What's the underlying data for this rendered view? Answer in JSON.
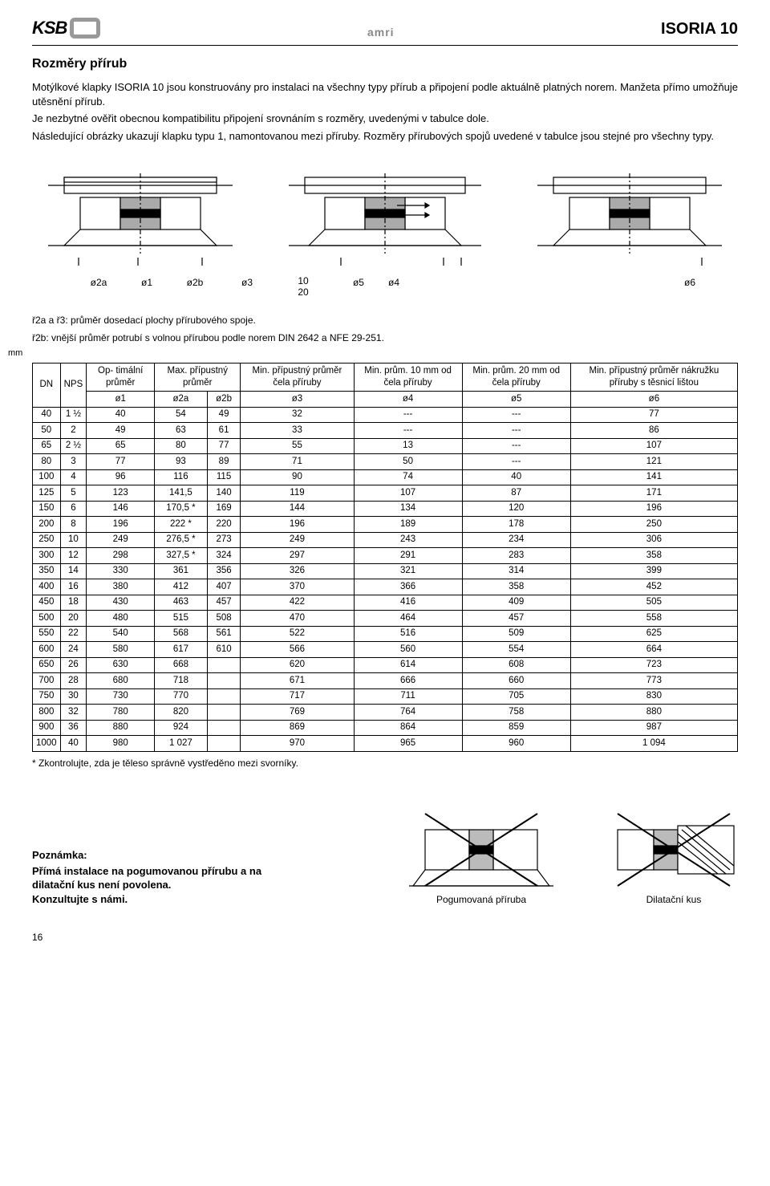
{
  "header": {
    "logo_text": "KSB",
    "center_brand": "amri",
    "product": "ISORIA 10"
  },
  "section": {
    "title": "Rozměry přírub",
    "p1": "Motýlkové klapky ISORIA 10 jsou konstruovány pro instalaci na všechny typy přírub a připojení podle aktuálně platných norem. Manžeta přímo umožňuje utěsnění přírub.",
    "p2": "Je nezbytné ověřit obecnou kompatibilitu připojení srovnáním s rozměry, uvedenými v tabulce dole.",
    "p3": "Následující obrázky ukazují klapku typu 1, namontovanou mezi příruby. Rozměry přírubových spojů uvedené v tabulce jsou stejné pro všechny typy."
  },
  "diagram_labels": {
    "o2a": "ø2a",
    "o1": "ø1",
    "o2b": "ø2b",
    "o3": "ø3",
    "ten": "10",
    "twenty": "20",
    "o4": "ø4",
    "o5": "ø5",
    "o6": "ø6"
  },
  "footnotes": {
    "fn1": "ř2a a ř3: průměr dosedací plochy přírubového spoje.",
    "fn2": "ř2b: vnější průměr potrubí s volnou přírubou podle norem DIN 2642 a NFE 29-251."
  },
  "table": {
    "mm_label": "mm",
    "headers": {
      "dn": "DN",
      "nps": "NPS",
      "opt": "Op-\ntimální\nprůměr",
      "max": "Max. přípustný\nprůměr",
      "min_cela": "Min. přípustný\nprůměr\nčela příruby",
      "min10": "Min. prům. 10\nmm od čela\npříruby",
      "min20": "Min. prům. 20\nmm od čela\npříruby",
      "min_nak": "Min. přípustný\nprůměr\nnákružku příruby\ns těsnicí lištou",
      "o1": "ø1",
      "o2a": "ø2a",
      "o2b": "ø2b",
      "o3": "ø3",
      "o4": "ø4",
      "o5": "ø5",
      "o6": "ø6"
    },
    "rows": [
      {
        "dn": "40",
        "nps": "1 ½",
        "o1": "40",
        "o2a": "54",
        "o2b": "49",
        "o3": "32",
        "o4": "---",
        "o5": "---",
        "o6": "77"
      },
      {
        "dn": "50",
        "nps": "2",
        "o1": "49",
        "o2a": "63",
        "o2b": "61",
        "o3": "33",
        "o4": "---",
        "o5": "---",
        "o6": "86"
      },
      {
        "dn": "65",
        "nps": "2 ½",
        "o1": "65",
        "o2a": "80",
        "o2b": "77",
        "o3": "55",
        "o4": "13",
        "o5": "---",
        "o6": "107"
      },
      {
        "dn": "80",
        "nps": "3",
        "o1": "77",
        "o2a": "93",
        "o2b": "89",
        "o3": "71",
        "o4": "50",
        "o5": "---",
        "o6": "121"
      },
      {
        "dn": "100",
        "nps": "4",
        "o1": "96",
        "o2a": "116",
        "o2b": "115",
        "o3": "90",
        "o4": "74",
        "o5": "40",
        "o6": "141"
      },
      {
        "dn": "125",
        "nps": "5",
        "o1": "123",
        "o2a": "141,5",
        "o2b": "140",
        "o3": "119",
        "o4": "107",
        "o5": "87",
        "o6": "171"
      },
      {
        "dn": "150",
        "nps": "6",
        "o1": "146",
        "o2a": "170,5 *",
        "o2b": "169",
        "o3": "144",
        "o4": "134",
        "o5": "120",
        "o6": "196"
      },
      {
        "dn": "200",
        "nps": "8",
        "o1": "196",
        "o2a": "222   *",
        "o2b": "220",
        "o3": "196",
        "o4": "189",
        "o5": "178",
        "o6": "250"
      },
      {
        "dn": "250",
        "nps": "10",
        "o1": "249",
        "o2a": "276,5 *",
        "o2b": "273",
        "o3": "249",
        "o4": "243",
        "o5": "234",
        "o6": "306"
      },
      {
        "dn": "300",
        "nps": "12",
        "o1": "298",
        "o2a": "327,5 *",
        "o2b": "324",
        "o3": "297",
        "o4": "291",
        "o5": "283",
        "o6": "358"
      },
      {
        "dn": "350",
        "nps": "14",
        "o1": "330",
        "o2a": "361",
        "o2b": "356",
        "o3": "326",
        "o4": "321",
        "o5": "314",
        "o6": "399"
      },
      {
        "dn": "400",
        "nps": "16",
        "o1": "380",
        "o2a": "412",
        "o2b": "407",
        "o3": "370",
        "o4": "366",
        "o5": "358",
        "o6": "452"
      },
      {
        "dn": "450",
        "nps": "18",
        "o1": "430",
        "o2a": "463",
        "o2b": "457",
        "o3": "422",
        "o4": "416",
        "o5": "409",
        "o6": "505"
      },
      {
        "dn": "500",
        "nps": "20",
        "o1": "480",
        "o2a": "515",
        "o2b": "508",
        "o3": "470",
        "o4": "464",
        "o5": "457",
        "o6": "558"
      },
      {
        "dn": "550",
        "nps": "22",
        "o1": "540",
        "o2a": "568",
        "o2b": "561",
        "o3": "522",
        "o4": "516",
        "o5": "509",
        "o6": "625"
      },
      {
        "dn": "600",
        "nps": "24",
        "o1": "580",
        "o2a": "617",
        "o2b": "610",
        "o3": "566",
        "o4": "560",
        "o5": "554",
        "o6": "664"
      },
      {
        "dn": "650",
        "nps": "26",
        "o1": "630",
        "o2a": "668",
        "o2b": "",
        "o3": "620",
        "o4": "614",
        "o5": "608",
        "o6": "723"
      },
      {
        "dn": "700",
        "nps": "28",
        "o1": "680",
        "o2a": "718",
        "o2b": "",
        "o3": "671",
        "o4": "666",
        "o5": "660",
        "o6": "773"
      },
      {
        "dn": "750",
        "nps": "30",
        "o1": "730",
        "o2a": "770",
        "o2b": "",
        "o3": "717",
        "o4": "711",
        "o5": "705",
        "o6": "830"
      },
      {
        "dn": "800",
        "nps": "32",
        "o1": "780",
        "o2a": "820",
        "o2b": "",
        "o3": "769",
        "o4": "764",
        "o5": "758",
        "o6": "880"
      },
      {
        "dn": "900",
        "nps": "36",
        "o1": "880",
        "o2a": "924",
        "o2b": "",
        "o3": "869",
        "o4": "864",
        "o5": "859",
        "o6": "987"
      },
      {
        "dn": "1000",
        "nps": "40",
        "o1": "980",
        "o2a": "1 027",
        "o2b": "",
        "o3": "970",
        "o4": "965",
        "o5": "960",
        "o6": "1 094"
      }
    ],
    "footnote": "*  Zkontrolujte, zda je těleso správně vystředěno mezi svorníky."
  },
  "note": {
    "heading": "Poznámka:",
    "line1": "Přímá instalace na pogumovanou přírubu a na dilatační kus není povolena.",
    "line2": "Konzultujte s námi.",
    "fig1": "Pogumovaná příruba",
    "fig2": "Dilatační kus"
  },
  "page_number": "16"
}
